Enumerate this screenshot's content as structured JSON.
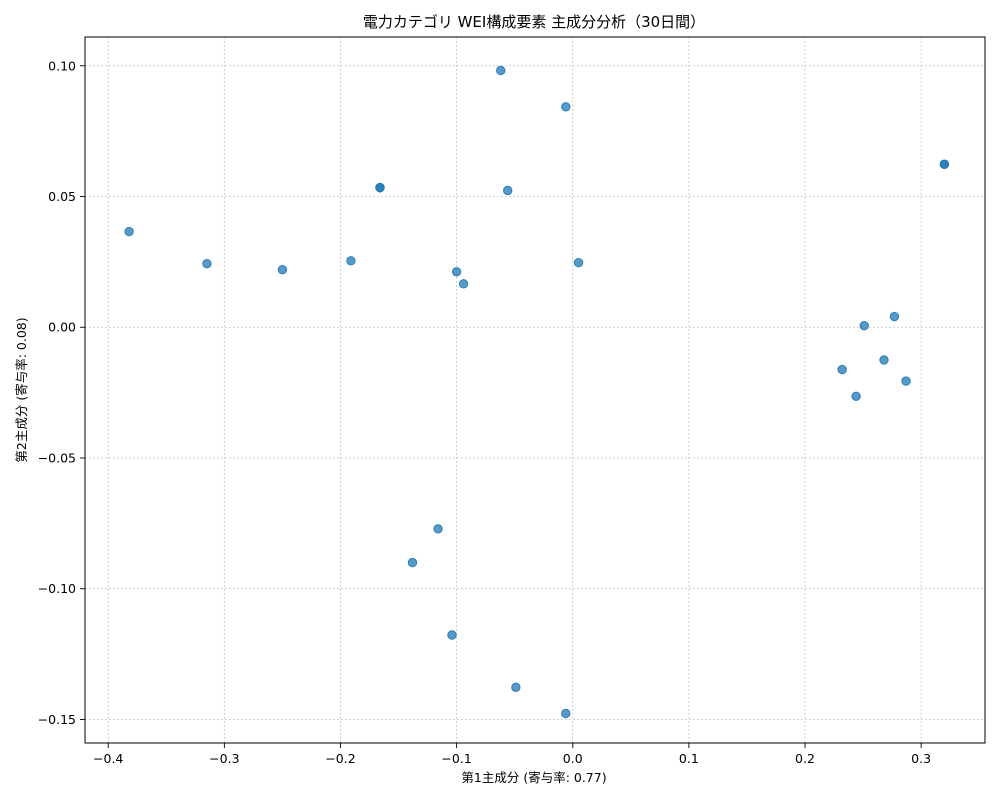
{
  "chart_data": {
    "type": "scatter",
    "title": "電力カテゴリ WEI構成要素 主成分分析（30日間）",
    "xlabel": "第1主成分 (寄与率: 0.77)",
    "ylabel": "第2主成分 (寄与率: 0.08)",
    "xlim": [
      -0.42,
      0.355
    ],
    "ylim": [
      -0.159,
      0.111
    ],
    "grid": true,
    "xticks": [
      -0.4,
      -0.3,
      -0.2,
      -0.1,
      0.0,
      0.1,
      0.2,
      0.3
    ],
    "xtick_labels": [
      "−0.4",
      "−0.3",
      "−0.2",
      "−0.1",
      "0.0",
      "0.1",
      "0.2",
      "0.3"
    ],
    "yticks": [
      0.1,
      0.05,
      0.0,
      -0.05,
      -0.1,
      -0.15
    ],
    "ytick_labels": [
      "0.10",
      "0.05",
      "0.00",
      "−0.05",
      "−0.10",
      "−0.15"
    ],
    "color": "#1f77b4",
    "points": [
      {
        "x": -0.382,
        "y": 0.0366
      },
      {
        "x": -0.315,
        "y": 0.0243
      },
      {
        "x": -0.25,
        "y": 0.022
      },
      {
        "x": -0.191,
        "y": 0.0254
      },
      {
        "x": -0.166,
        "y": 0.0534
      },
      {
        "x": -0.166,
        "y": 0.0534
      },
      {
        "x": -0.1,
        "y": 0.0212
      },
      {
        "x": -0.094,
        "y": 0.0166
      },
      {
        "x": -0.062,
        "y": 0.0982
      },
      {
        "x": -0.056,
        "y": 0.0523
      },
      {
        "x": -0.006,
        "y": 0.0843
      },
      {
        "x": 0.005,
        "y": 0.0247
      },
      {
        "x": 0.251,
        "y": 0.0006
      },
      {
        "x": 0.277,
        "y": 0.0041
      },
      {
        "x": 0.32,
        "y": 0.0623
      },
      {
        "x": 0.32,
        "y": 0.0623
      },
      {
        "x": 0.232,
        "y": -0.0162
      },
      {
        "x": 0.268,
        "y": -0.0125
      },
      {
        "x": 0.287,
        "y": -0.0206
      },
      {
        "x": 0.244,
        "y": -0.0264
      },
      {
        "x": -0.116,
        "y": -0.0771
      },
      {
        "x": -0.138,
        "y": -0.09
      },
      {
        "x": -0.104,
        "y": -0.1177
      },
      {
        "x": -0.049,
        "y": -0.1377
      },
      {
        "x": -0.006,
        "y": -0.1477
      }
    ]
  }
}
